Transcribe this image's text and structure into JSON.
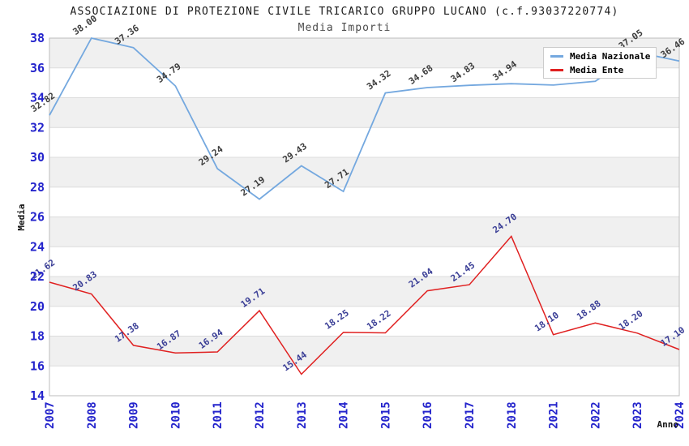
{
  "header": {
    "title": "ASSOCIAZIONE DI PROTEZIONE CIVILE TRICARICO GRUPPO LUCANO (c.f.93037220774)",
    "subtitle": "Media Importi"
  },
  "chart_data": {
    "type": "line",
    "title": "ASSOCIAZIONE DI PROTEZIONE CIVILE TRICARICO GRUPPO LUCANO (c.f.93037220774)",
    "subtitle": "Media Importi",
    "categories": [
      "2007",
      "2008",
      "2009",
      "2010",
      "2011",
      "2012",
      "2013",
      "2014",
      "2015",
      "2016",
      "2017",
      "2018",
      "2021",
      "2022",
      "2023",
      "2024"
    ],
    "series": [
      {
        "name": "Media Nazionale",
        "color": "#74a8df",
        "label_color": "#3c3c3c",
        "values": [
          32.82,
          38.0,
          37.36,
          34.79,
          29.24,
          27.19,
          29.43,
          27.71,
          34.32,
          34.68,
          34.83,
          34.94,
          34.85,
          35.1,
          37.05,
          36.46
        ]
      },
      {
        "name": "Media Ente",
        "color": "#e02020",
        "label_color": "#3a3e96",
        "values": [
          21.62,
          20.83,
          17.38,
          16.87,
          16.94,
          19.71,
          15.44,
          18.25,
          18.22,
          21.04,
          21.45,
          24.7,
          18.1,
          18.88,
          18.2,
          17.1
        ]
      }
    ],
    "xlabel": "Anno",
    "ylabel": "Media",
    "ylim": [
      14,
      38
    ],
    "ytick_step": 2,
    "grid": "horizontal",
    "band_fill": "#f0f0f0",
    "gridline_color": "#dcdcdc",
    "plot_border_color": "#bdbdbd",
    "axis_tick_color": "#2424cc",
    "legend_position": "top-right"
  }
}
